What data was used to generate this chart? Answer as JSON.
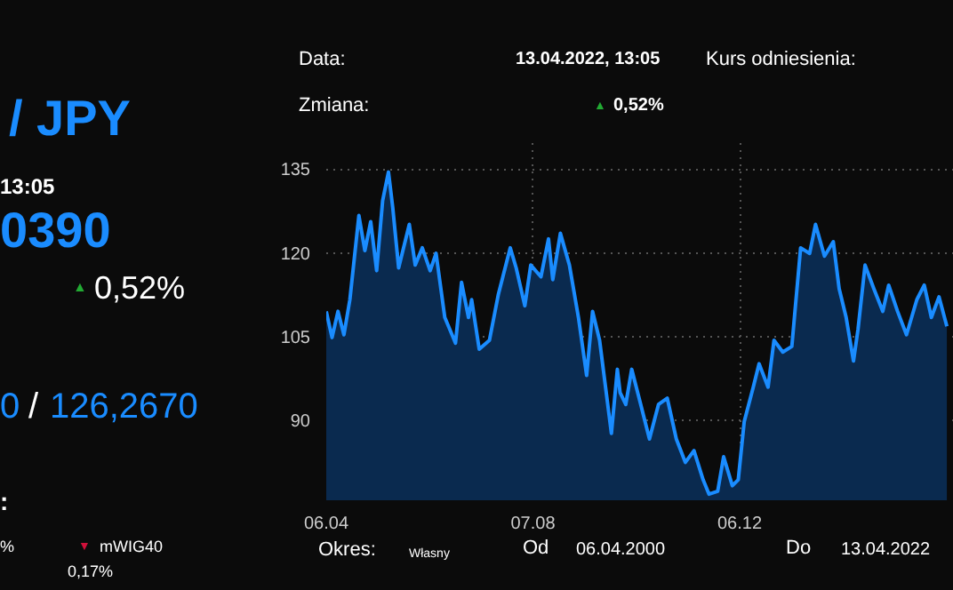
{
  "chart_data": {
    "type": "area",
    "annotations": [
      "/ JPY",
      "13:05",
      "0390",
      "▲",
      "0,52%",
      "0",
      "/",
      "126,2670",
      ":",
      "%",
      "▼",
      "mWIG40",
      "0,17%",
      "Data:",
      "13.04.2022, 13:05",
      "Kurs odniesienia:",
      "Zmiana:",
      "▲",
      "0,52%",
      "Okres:",
      "Własny",
      "Od",
      "06.04.2000",
      "Do",
      "13.04.2022"
    ],
    "x": [
      "2000-04-06",
      "2000-06-20",
      "2000-09-05",
      "2000-11-21",
      "2001-02-06",
      "2001-06-03",
      "2001-08-19",
      "2001-11-03",
      "2002-01-19",
      "2002-04-06",
      "2002-06-21",
      "2002-08-15",
      "2002-10-31",
      "2003-03-18",
      "2003-06-03",
      "2003-09-02",
      "2003-12-13",
      "2004-02-28",
      "2004-06-20",
      "2004-11-06",
      "2005-01-23",
      "2005-04-23",
      "2005-06-03",
      "2005-09-09",
      "2006-01-19",
      "2006-05-16",
      "2006-10-16",
      "2007-01-01",
      "2007-04-23",
      "2007-07-09",
      "2007-11-18",
      "2008-02-24",
      "2008-04-19",
      "2008-07-27",
      "2008-11-21",
      "2009-03-18",
      "2009-07-02",
      "2009-09-17",
      "2009-12-17",
      "2010-05-19",
      "2010-08-04",
      "2010-09-09",
      "2010-11-21",
      "2011-02-06",
      "2011-06-03",
      "2011-09-24",
      "2012-01-19",
      "2012-05-12",
      "2012-09-06",
      "2013-01-01",
      "2013-04-23",
      "2013-08-19",
      "2013-11-03",
      "2014-02-24",
      "2014-05-12",
      "2014-09-02",
      "2014-11-18",
      "2015-02-03",
      "2015-05-31",
      "2015-08-15",
      "2015-12-09",
      "2016-02-24",
      "2016-06-17",
      "2016-10-12",
      "2017-02-03",
      "2017-05-31",
      "2017-08-15",
      "2017-12-09",
      "2018-04-02",
      "2018-06-17",
      "2018-09-16",
      "2018-12-20",
      "2019-02-17",
      "2019-05-19",
      "2019-09-09",
      "2020-01-04",
      "2020-03-20",
      "2020-07-13",
      "2020-11-06",
      "2021-03-20",
      "2021-06-24",
      "2021-09-24",
      "2022-01-01",
      "2022-04-13"
    ],
    "series": [
      {
        "color": "#1a8cff",
        "values": [
          109.5,
          104.8,
          109.5,
          105.3,
          111.6,
          126.7,
          120.4,
          125.6,
          116.8,
          129.3,
          134.5,
          128.2,
          117.3,
          125.1,
          117.8,
          120.9,
          116.8,
          119.9,
          108.4,
          103.8,
          114.7,
          108.4,
          111.6,
          102.7,
          104.3,
          112.6,
          120.9,
          117.3,
          110.5,
          117.8,
          115.7,
          122.5,
          115.2,
          123.5,
          117.8,
          108.4,
          98.0,
          109.5,
          104.3,
          87.6,
          99.1,
          94.9,
          92.8,
          99.1,
          92.8,
          86.6,
          92.8,
          93.9,
          86.6,
          82.4,
          84.5,
          79.3,
          76.7,
          77.2,
          83.4,
          78.2,
          79.3,
          89.7,
          95.9,
          100.1,
          95.9,
          104.3,
          102.2,
          103.2,
          120.9,
          119.9,
          125.1,
          119.4,
          122.0,
          113.6,
          108.4,
          100.6,
          106.3,
          117.8,
          113.6,
          109.5,
          114.2,
          109.5,
          105.3,
          111.6,
          114.2,
          108.4,
          112.1,
          106.8
        ]
      }
    ],
    "xticks": [
      {
        "value": "2000-04-06",
        "label": "06.04"
      },
      {
        "value": "2007-08-07",
        "label": "07.08"
      },
      {
        "value": "2014-12-06",
        "label": "06.12"
      }
    ],
    "xlim": [
      "2000-04-06",
      "2022-07-13"
    ],
    "ylim": [
      75.6,
      139.7
    ],
    "yticks": [
      90,
      105,
      120,
      135
    ],
    "grid": true
  }
}
